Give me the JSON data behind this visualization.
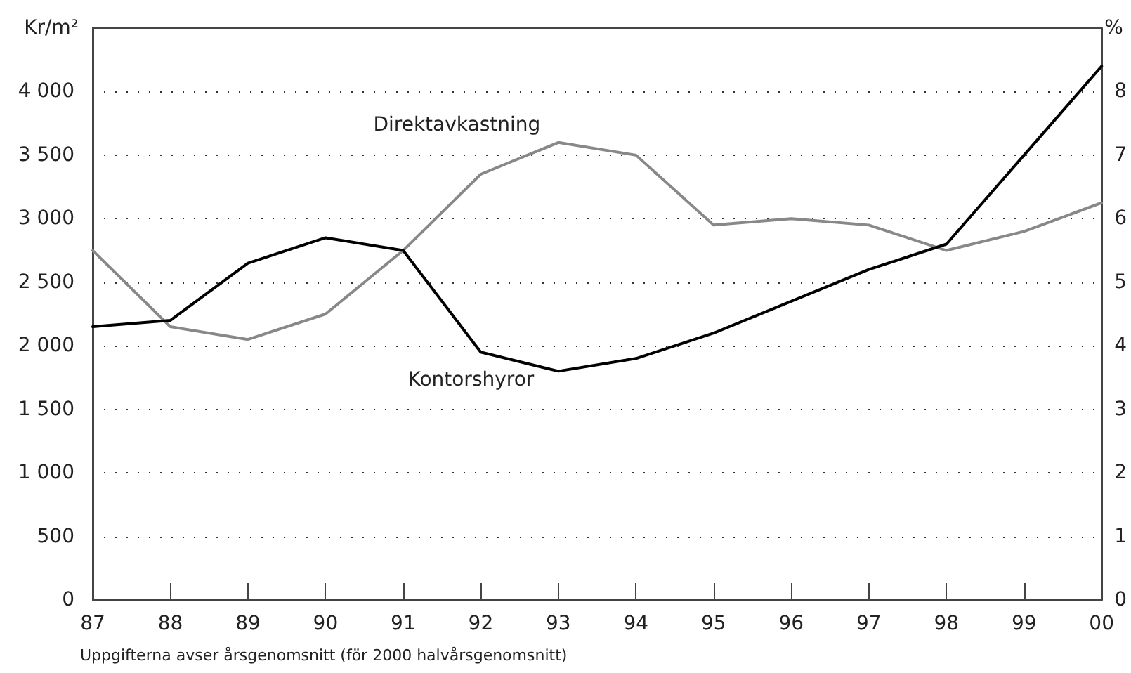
{
  "chart_data": {
    "type": "line",
    "categories": [
      "87",
      "88",
      "89",
      "90",
      "91",
      "92",
      "93",
      "94",
      "95",
      "96",
      "97",
      "98",
      "99",
      "00"
    ],
    "series": [
      {
        "name": "Kontorshyror",
        "color": "#000000",
        "values": [
          2150,
          2200,
          2650,
          2850,
          2750,
          1950,
          1800,
          1900,
          2100,
          2350,
          2600,
          2800,
          3500,
          4200
        ]
      },
      {
        "name": "Direktavkastning",
        "color": "#888888",
        "axis": "y2",
        "values": [
          5.5,
          4.3,
          4.1,
          4.5,
          5.5,
          6.7,
          7.2,
          7.0,
          5.9,
          6.0,
          5.9,
          5.5,
          5.8,
          6.25
        ]
      }
    ],
    "ylabel": "Kr/m²",
    "y2label": "%",
    "ylim": [
      0,
      4500
    ],
    "yticks": [
      0,
      500,
      {
        "value": 1000,
        "label": "1 000"
      },
      {
        "value": 1500,
        "label": "1 500"
      },
      {
        "value": 2000,
        "label": "2 000"
      },
      {
        "value": 2500,
        "label": "2 500"
      },
      {
        "value": 3000,
        "label": "3 000"
      },
      {
        "value": 3500,
        "label": "3 500"
      },
      {
        "value": 4000,
        "label": "4 000"
      }
    ],
    "y2lim": [
      0,
      9
    ],
    "y2ticks": [
      0,
      1,
      2,
      3,
      4,
      5,
      6,
      7,
      8
    ],
    "grid": "y",
    "marker": "none",
    "line_style": "solid",
    "annotations": [
      "Uppgifterna avser årsgenomsnitt (för 2000 halvårsgenomsnitt)"
    ]
  }
}
